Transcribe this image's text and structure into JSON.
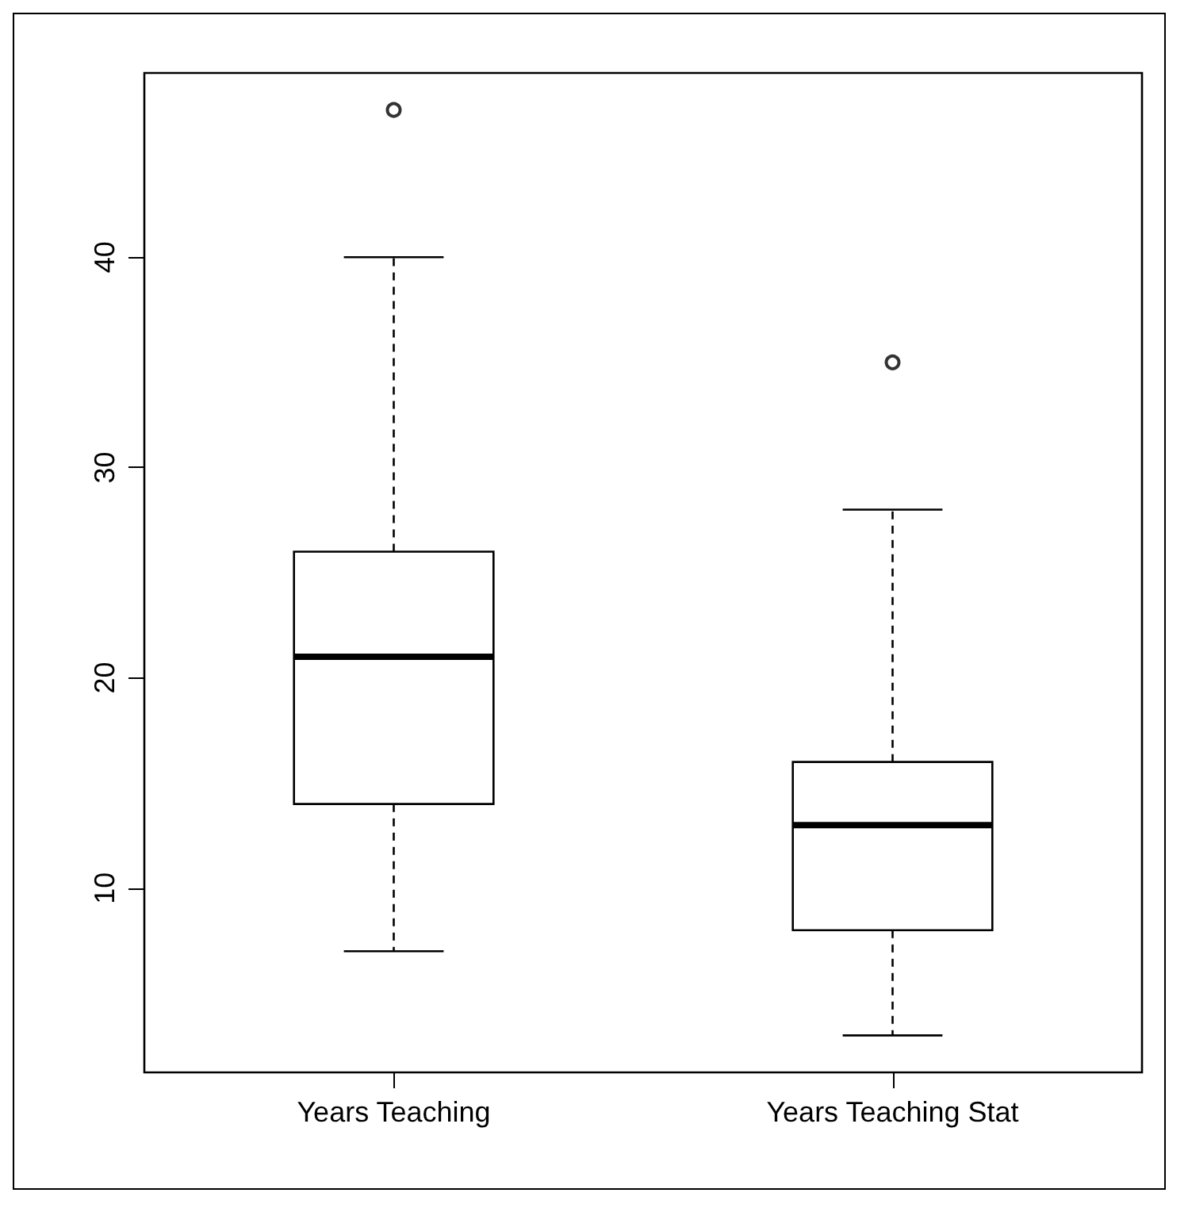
{
  "chart_data": {
    "type": "box",
    "categories": [
      "Years Teaching",
      "Years Teaching Stat"
    ],
    "boxes": [
      {
        "low": 7,
        "q1": 14,
        "median": 21,
        "q3": 26,
        "high": 40,
        "outliers": [
          47
        ]
      },
      {
        "low": 3,
        "q1": 8,
        "median": 13,
        "q3": 16,
        "high": 28,
        "outliers": [
          35
        ]
      }
    ],
    "ylim": [
      1.24,
      48.76
    ],
    "yticks": [
      10,
      20,
      30,
      40
    ],
    "grid": false
  }
}
